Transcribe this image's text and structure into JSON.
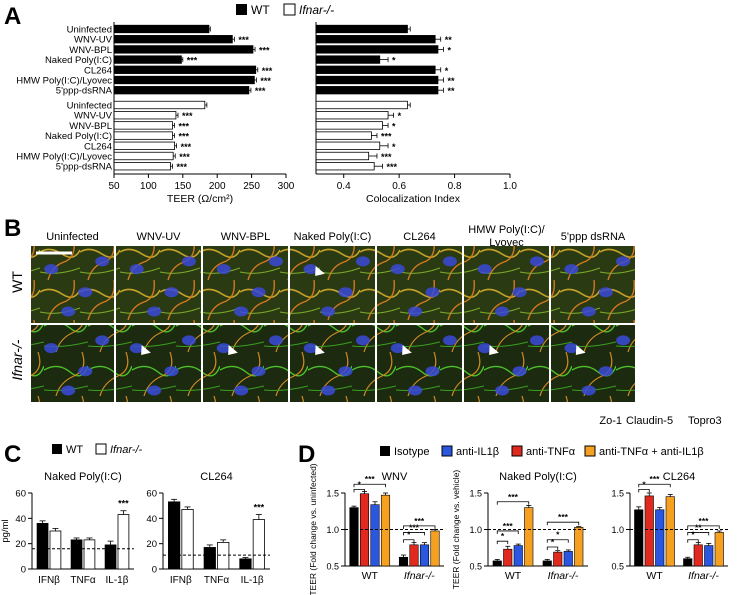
{
  "panels": {
    "A": "A",
    "B": "B",
    "C": "C",
    "D": "D"
  },
  "colors": {
    "wt": "#000000",
    "ifnar": "#ffffff",
    "isotype": "#000000",
    "anti_il1b": "#2b56e0",
    "anti_tnfa": "#e02a1f",
    "combo": "#f5a020",
    "zo1": "#22cc22",
    "claudin5": "#e02a1f",
    "topro3": "#2b56e0"
  },
  "legend_A": {
    "wt": "WT",
    "ifnar": "Ifnar-/-"
  },
  "legend_C": {
    "wt": "WT",
    "ifnar": "Ifnar-/-"
  },
  "legend_D": [
    "Isotype",
    "anti-IL1β",
    "anti-TNFα",
    "anti-TNFα + anti-IL1β"
  ],
  "chart_data": [
    {
      "id": "A-left",
      "type": "bar",
      "orientation": "horizontal",
      "xlabel": "TEER (Ω/cm²)",
      "xlim": [
        50,
        300
      ],
      "xticks": [
        "50",
        "100",
        "150",
        "200",
        "250",
        "300"
      ],
      "categories": [
        "Uninfected",
        "WNV-UV",
        "WNV-BPL",
        "Naked Poly(I:C)",
        "CL264",
        "HMW Poly(I:C)/Lyovec",
        "5'ppp-dsRNA"
      ],
      "series": [
        {
          "name": "WT",
          "values": [
            188,
            222,
            252,
            148,
            256,
            254,
            246
          ],
          "errors": [
            2,
            3,
            3,
            2,
            3,
            3,
            3
          ],
          "sig": [
            "",
            "***",
            "***",
            "***",
            "***",
            "***",
            "***"
          ]
        },
        {
          "name": "Ifnar-/-",
          "values": [
            182,
            140,
            135,
            135,
            138,
            136,
            132
          ],
          "errors": [
            3,
            3,
            3,
            3,
            3,
            3,
            3
          ],
          "sig": [
            "",
            "***",
            "***",
            "***",
            "***",
            "***",
            "***"
          ]
        }
      ]
    },
    {
      "id": "A-right",
      "type": "bar",
      "orientation": "horizontal",
      "xlabel": "Colocalization Index",
      "xlim": [
        0.3,
        1.0
      ],
      "xticks": [
        "0.4",
        "0.6",
        "0.8",
        "1.0"
      ],
      "categories": [
        "Uninfected",
        "WNV-UV",
        "WNV-BPL",
        "Naked Poly(I:C)",
        "CL264",
        "HMW Poly(I:C)/Lyovec",
        "5'ppp-dsRNA"
      ],
      "series": [
        {
          "name": "WT",
          "values": [
            0.63,
            0.73,
            0.74,
            0.53,
            0.73,
            0.74,
            0.74
          ],
          "errors": [
            0.01,
            0.02,
            0.02,
            0.03,
            0.02,
            0.02,
            0.02
          ],
          "sig": [
            "",
            "**",
            "*",
            "*",
            "*",
            "**",
            "**"
          ]
        },
        {
          "name": "Ifnar-/-",
          "values": [
            0.63,
            0.56,
            0.54,
            0.5,
            0.53,
            0.49,
            0.51
          ],
          "errors": [
            0.01,
            0.02,
            0.02,
            0.02,
            0.03,
            0.03,
            0.03
          ],
          "sig": [
            "",
            "*",
            "*",
            "***",
            "*",
            "***",
            "***"
          ]
        }
      ]
    },
    {
      "id": "C-left",
      "type": "bar",
      "title": "Naked Poly(I:C)",
      "ylabel": "pg/ml",
      "ylim": [
        0,
        60
      ],
      "yticks": [
        "0",
        "20",
        "40",
        "60"
      ],
      "dashed_line": 16,
      "categories": [
        "IFNβ",
        "TNFα",
        "IL-1β"
      ],
      "series": [
        {
          "name": "WT",
          "values": [
            36,
            23,
            19
          ],
          "errors": [
            2,
            1.5,
            3
          ],
          "sig": [
            "",
            "",
            ""
          ]
        },
        {
          "name": "Ifnar-/-",
          "values": [
            30,
            23,
            43
          ],
          "errors": [
            2,
            1.5,
            3
          ],
          "sig": [
            "",
            "",
            "***"
          ]
        }
      ]
    },
    {
      "id": "C-right",
      "type": "bar",
      "title": "CL264",
      "ylim": [
        0,
        60
      ],
      "yticks": [
        "0",
        "20",
        "40",
        "60"
      ],
      "dashed_line": 11,
      "categories": [
        "IFNβ",
        "TNFα",
        "IL-1β"
      ],
      "series": [
        {
          "name": "WT",
          "values": [
            53,
            17,
            8
          ],
          "errors": [
            2,
            2,
            1
          ],
          "sig": [
            "",
            "",
            ""
          ]
        },
        {
          "name": "Ifnar-/-",
          "values": [
            47,
            21,
            39
          ],
          "errors": [
            2,
            2,
            4
          ],
          "sig": [
            "",
            "",
            "***"
          ]
        }
      ]
    },
    {
      "id": "D-WNV",
      "type": "bar",
      "title": "WNV",
      "ylabel": "TEER (Fold change vs. uninfected)",
      "ylim": [
        0.5,
        1.5
      ],
      "yticks": [
        "0.5",
        "1.0",
        "1.5"
      ],
      "dashed_line": 1.0,
      "groups": [
        "WT",
        "Ifnar-/-"
      ],
      "series": [
        {
          "name": "Isotype",
          "values": [
            1.3,
            0.62
          ],
          "errors": [
            0.02,
            0.03
          ]
        },
        {
          "name": "anti-IL1β",
          "values": [
            1.34,
            0.79
          ],
          "errors": [
            0.04,
            0.03
          ]
        },
        {
          "name": "anti-TNFα",
          "values": [
            1.49,
            0.79
          ],
          "errors": [
            0.03,
            0.03
          ]
        },
        {
          "name": "anti-TNFα + anti-IL1β",
          "values": [
            1.47,
            0.98
          ],
          "errors": [
            0.03,
            0.02
          ]
        }
      ],
      "sig": [
        "*",
        "***",
        "*",
        "***",
        "***"
      ]
    },
    {
      "id": "D-PolyIC",
      "type": "bar",
      "title": "Naked Poly(I:C)",
      "ylabel": "TEER (Fold change vs. vehicle)",
      "ylim": [
        0.5,
        1.5
      ],
      "yticks": [
        "0.5",
        "1.0",
        "1.5"
      ],
      "dashed_line": 1.0,
      "groups": [
        "WT",
        "Ifnar-/-"
      ],
      "series": [
        {
          "name": "Isotype",
          "values": [
            0.57,
            0.57
          ],
          "errors": [
            0.02,
            0.02
          ]
        },
        {
          "name": "anti-IL1β",
          "values": [
            0.78,
            0.7
          ],
          "errors": [
            0.02,
            0.02
          ]
        },
        {
          "name": "anti-TNFα",
          "values": [
            0.73,
            0.69
          ],
          "errors": [
            0.04,
            0.02
          ]
        },
        {
          "name": "anti-TNFα + anti-IL1β",
          "values": [
            1.3,
            1.03
          ],
          "errors": [
            0.03,
            0.01
          ]
        }
      ],
      "sig": [
        "*",
        "***",
        "***",
        "*",
        "*",
        "***"
      ]
    },
    {
      "id": "D-CL264",
      "type": "bar",
      "title": "CL264",
      "ylim": [
        0.5,
        1.5
      ],
      "yticks": [
        "0.5",
        "1.0",
        "1.5"
      ],
      "dashed_line": 1.0,
      "groups": [
        "WT",
        "Ifnar-/-"
      ],
      "series": [
        {
          "name": "Isotype",
          "values": [
            1.27,
            0.6
          ],
          "errors": [
            0.04,
            0.02
          ]
        },
        {
          "name": "anti-IL1β",
          "values": [
            1.27,
            0.78
          ],
          "errors": [
            0.03,
            0.03
          ]
        },
        {
          "name": "anti-TNFα",
          "values": [
            1.46,
            0.79
          ],
          "errors": [
            0.04,
            0.03
          ]
        },
        {
          "name": "anti-TNFα + anti-IL1β",
          "values": [
            1.45,
            0.96
          ],
          "errors": [
            0.03,
            0.02
          ]
        }
      ],
      "sig": [
        "*",
        "***",
        "*",
        "**",
        "***"
      ]
    }
  ],
  "panel_B": {
    "column_labels": [
      "Uninfected",
      "WNV-UV",
      "WNV-BPL",
      "Naked Poly(I:C)",
      "CL264",
      "HMW Poly(I:C)/ Lyovec",
      "5'ppp dsRNA"
    ],
    "row_labels": [
      "WT",
      "Ifnar-/-"
    ],
    "stain_legend": [
      "Zo-1",
      "Claudin-5",
      "Topro3"
    ]
  }
}
